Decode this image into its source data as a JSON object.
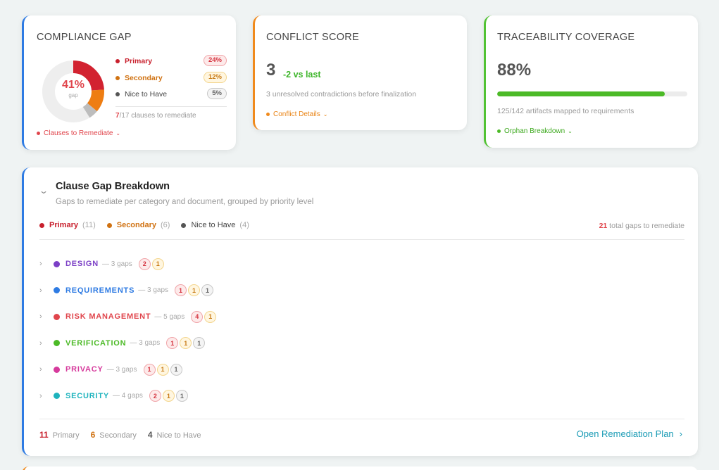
{
  "compliance": {
    "title": "COMPLIANCE GAP",
    "gap_pct": "41%",
    "gap_label": "gap",
    "donut_fractions": [
      0.24,
      0.12,
      0.05
    ],
    "legend": [
      {
        "label": "Primary",
        "value": "24%",
        "color": "#c8202d"
      },
      {
        "label": "Secondary",
        "value": "12%",
        "color": "#d07212"
      },
      {
        "label": "Nice to Have",
        "value": "5%",
        "color": "#555555"
      }
    ],
    "remediate_count": "7",
    "remediate_text": "/17 clauses to remediate",
    "link": "Clauses to Remediate"
  },
  "conflict": {
    "title": "CONFLICT SCORE",
    "score": "3",
    "delta": "-2 vs last",
    "desc": "3 unresolved contradictions before finalization",
    "link": "Conflict Details"
  },
  "trace": {
    "title": "TRACEABILITY COVERAGE",
    "pct": "88%",
    "fill_fraction": 0.88,
    "desc": "125/142 artifacts mapped to requirements",
    "link": "Orphan Breakdown"
  },
  "breakdown": {
    "title": "Clause Gap Breakdown",
    "subtitle": "Gaps to remediate per category and document, grouped by priority level",
    "legend": [
      {
        "label": "Primary",
        "count": "(11)",
        "color": "#c8202d"
      },
      {
        "label": "Secondary",
        "count": "(6)",
        "color": "#d07212"
      },
      {
        "label": "Nice to Have",
        "count": "(4)",
        "color": "#555555"
      }
    ],
    "total_num": "21",
    "total_text": " total gaps to remediate",
    "categories": [
      {
        "name": "DESIGN",
        "count": "— 3 gaps",
        "color": "#7b3fc6",
        "badges": [
          "2",
          "1"
        ]
      },
      {
        "name": "REQUIREMENTS",
        "count": "— 3 gaps",
        "color": "#2e7be3",
        "badges": [
          "1",
          "1",
          "1"
        ]
      },
      {
        "name": "RISK MANAGEMENT",
        "count": "— 5 gaps",
        "color": "#e0454c",
        "badges": [
          "4",
          "1"
        ]
      },
      {
        "name": "VERIFICATION",
        "count": "— 3 gaps",
        "color": "#4cba27",
        "badges": [
          "1",
          "1",
          "1"
        ]
      },
      {
        "name": "PRIVACY",
        "count": "— 3 gaps",
        "color": "#d63a9c",
        "badges": [
          "1",
          "1",
          "1"
        ]
      },
      {
        "name": "SECURITY",
        "count": "— 4 gaps",
        "color": "#1eb3bd",
        "badges": [
          "2",
          "1",
          "1"
        ]
      }
    ],
    "footer": [
      {
        "num": "11",
        "label": "Primary",
        "color": "#c8202d"
      },
      {
        "num": "6",
        "label": "Secondary",
        "color": "#d07212"
      },
      {
        "num": "4",
        "label": "Nice to Have",
        "color": "#555555"
      }
    ],
    "open_plan": "Open Remediation Plan"
  }
}
